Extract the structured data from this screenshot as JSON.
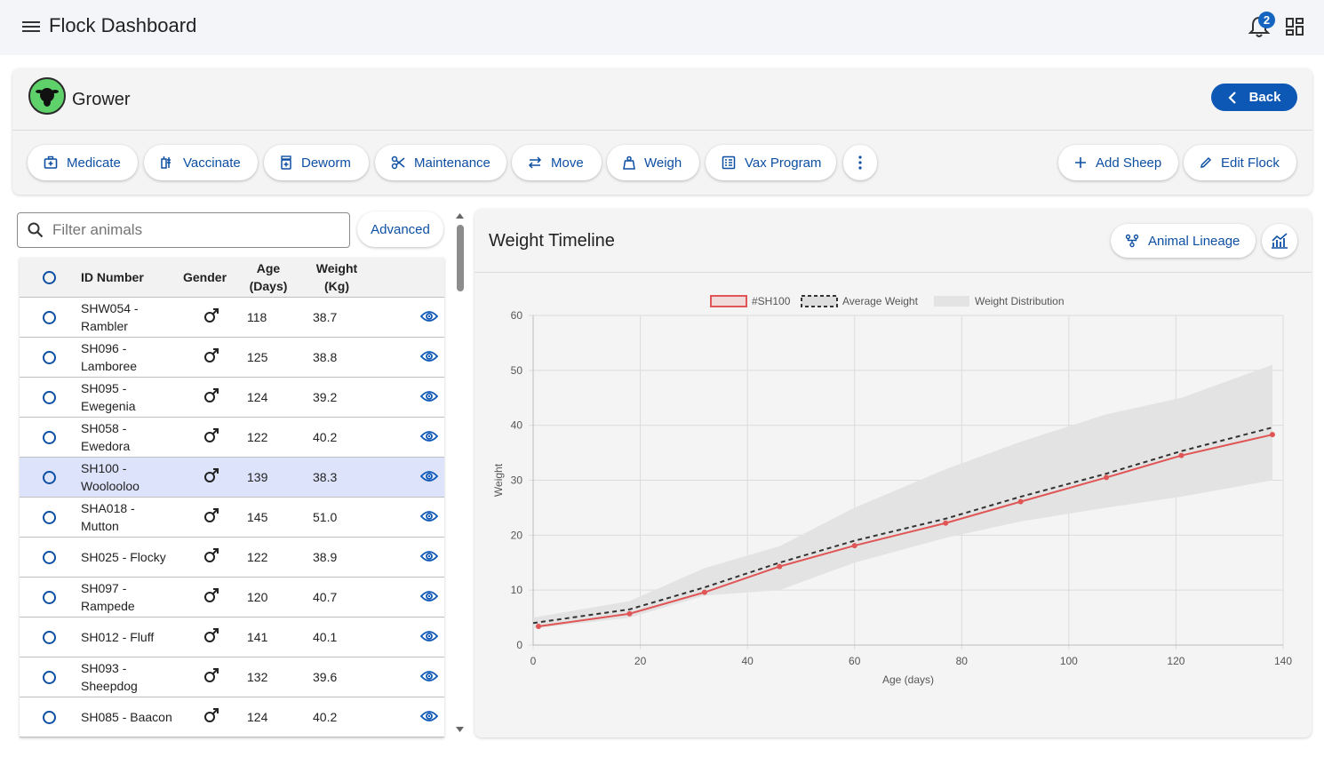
{
  "app": {
    "title": "Flock Dashboard",
    "notification_count": "2"
  },
  "flock": {
    "name": "Grower",
    "back_label": "Back"
  },
  "actions": [
    {
      "label": "Medicate",
      "icon": "medical-bag-icon"
    },
    {
      "label": "Vaccinate",
      "icon": "vaccine-icon"
    },
    {
      "label": "Deworm",
      "icon": "pill-bottle-icon"
    },
    {
      "label": "Maintenance",
      "icon": "scissors-icon"
    },
    {
      "label": "Move",
      "icon": "swap-arrows-icon"
    },
    {
      "label": "Weigh",
      "icon": "weight-icon"
    },
    {
      "label": "Vax Program",
      "icon": "list-box-icon"
    }
  ],
  "right_actions": {
    "add_sheep": "Add Sheep",
    "edit_flock": "Edit Flock"
  },
  "filter": {
    "placeholder": "Filter animals",
    "advanced_label": "Advanced"
  },
  "table": {
    "headers": {
      "id": "ID Number",
      "gender": "Gender",
      "age_line1": "Age",
      "age_line2": "(Days)",
      "weight_line1": "Weight",
      "weight_line2": "(Kg)"
    },
    "rows": [
      {
        "id_line1": "SHW054 -",
        "id_line2": "Rambler",
        "age": "118",
        "weight": "38.7"
      },
      {
        "id_line1": "SH096 -",
        "id_line2": "Lamboree",
        "age": "125",
        "weight": "38.8"
      },
      {
        "id_line1": "SH095 -",
        "id_line2": "Ewegenia",
        "age": "124",
        "weight": "39.2"
      },
      {
        "id_line1": "SH058 -",
        "id_line2": "Ewedora",
        "age": "122",
        "weight": "40.2"
      },
      {
        "id_line1": "SH100 -",
        "id_line2": "Woolooloo",
        "age": "139",
        "weight": "38.3",
        "selected": true
      },
      {
        "id_line1": "SHA018 -",
        "id_line2": "Mutton",
        "age": "145",
        "weight": "51.0"
      },
      {
        "id_line1": "SH025 - Flocky",
        "id_line2": "",
        "age": "122",
        "weight": "38.9"
      },
      {
        "id_line1": "SH097 -",
        "id_line2": "Rampede",
        "age": "120",
        "weight": "40.7"
      },
      {
        "id_line1": "SH012 - Fluff",
        "id_line2": "",
        "age": "141",
        "weight": "40.1"
      },
      {
        "id_line1": "SH093 -",
        "id_line2": "Sheepdog",
        "age": "132",
        "weight": "39.6"
      },
      {
        "id_line1": "SH085 - Baacon",
        "id_line2": "",
        "age": "124",
        "weight": "40.2"
      }
    ]
  },
  "chart_panel": {
    "title": "Weight Timeline",
    "lineage_label": "Animal Lineage"
  },
  "chart_data": {
    "type": "line",
    "xlabel": "Age (days)",
    "ylabel": "Weight",
    "xlim": [
      0,
      140
    ],
    "ylim": [
      0,
      60
    ],
    "xticks": [
      0,
      20,
      40,
      60,
      80,
      100,
      120,
      140
    ],
    "yticks": [
      0,
      10,
      20,
      30,
      40,
      50,
      60
    ],
    "grid": true,
    "legend_position": "top",
    "series": [
      {
        "name": "#SH100",
        "color": "#e05555",
        "x": [
          1,
          18,
          32,
          46,
          60,
          77,
          91,
          107,
          121,
          138
        ],
        "y": [
          3.4,
          5.7,
          9.6,
          14.3,
          18.1,
          22.2,
          26.1,
          30.5,
          34.5,
          38.3
        ]
      },
      {
        "name": "Average Weight",
        "color": "#333333",
        "dashed": true,
        "x": [
          0,
          18,
          32,
          46,
          60,
          77,
          91,
          107,
          121,
          138
        ],
        "y": [
          4.0,
          6.5,
          10.5,
          15.0,
          19.0,
          23.0,
          27.0,
          31.2,
          35.3,
          39.6
        ]
      },
      {
        "name": "Weight Distribution",
        "color": "#e3e3e3",
        "band": true,
        "x": [
          0,
          18,
          32,
          46,
          60,
          77,
          91,
          107,
          121,
          138
        ],
        "upper": [
          5.0,
          8.0,
          14.0,
          18.0,
          25.0,
          32.0,
          37.0,
          42.0,
          45.0,
          51.0
        ],
        "lower": [
          3.0,
          5.0,
          9.0,
          10.0,
          15.0,
          19.5,
          22.5,
          25.0,
          27.0,
          30.0
        ]
      }
    ]
  }
}
